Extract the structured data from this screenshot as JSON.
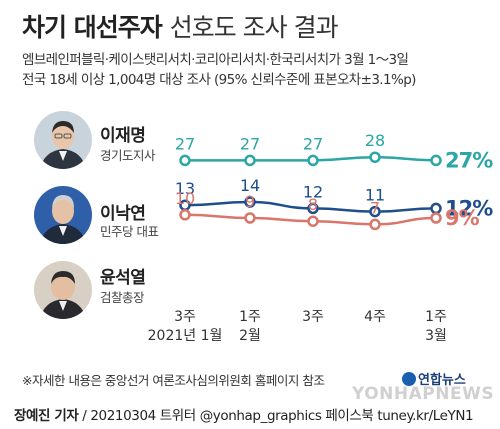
{
  "header": {
    "title_main": "차기 대선주자",
    "title_sub": "선호도 조사 결과"
  },
  "survey": {
    "line1": "엠브레인퍼블릭·케이스탯리서치·코리아리서치·한국리서치가 3월 1～3일",
    "line2": "전국 18세 이상 1,004명 대상 조사 (95% 신뢰수준에 표본오차±3.1%p)"
  },
  "candidates": [
    {
      "name": "이재명",
      "title": "경기도지사"
    },
    {
      "name": "이낙연",
      "title": "민주당 대표"
    },
    {
      "name": "윤석열",
      "title": "검찰총장"
    }
  ],
  "chart_data": {
    "type": "line",
    "x_labels": [
      {
        "top": "3주",
        "bottom": "2021년 1월"
      },
      {
        "top": "1주",
        "bottom": "2월"
      },
      {
        "top": "3주",
        "bottom": ""
      },
      {
        "top": "4주",
        "bottom": ""
      },
      {
        "top": "1주",
        "bottom": "3월"
      }
    ],
    "series": [
      {
        "name": "이재명",
        "values": [
          27,
          27,
          27,
          28,
          27
        ],
        "last_label": "27%",
        "color": "#2aa6a6"
      },
      {
        "name": "이낙연",
        "values": [
          13,
          14,
          12,
          11,
          12
        ],
        "last_label": "12%",
        "color": "#1f4e8c"
      },
      {
        "name": "윤석열",
        "values": [
          10,
          9,
          8,
          7,
          9
        ],
        "last_label": "9%",
        "color": "#d9756a"
      }
    ]
  },
  "footnote": "※자세한 내용은 중앙선거 여론조사심의위원회 홈페이지 참조",
  "brand": "연합뉴스",
  "watermark": "YONHAPNEWS",
  "credit": {
    "reporter": "장예진 기자",
    "rest": " / 20210304 트위터 @yonhap_graphics  페이스북 tuney.kr/LeYN1"
  }
}
